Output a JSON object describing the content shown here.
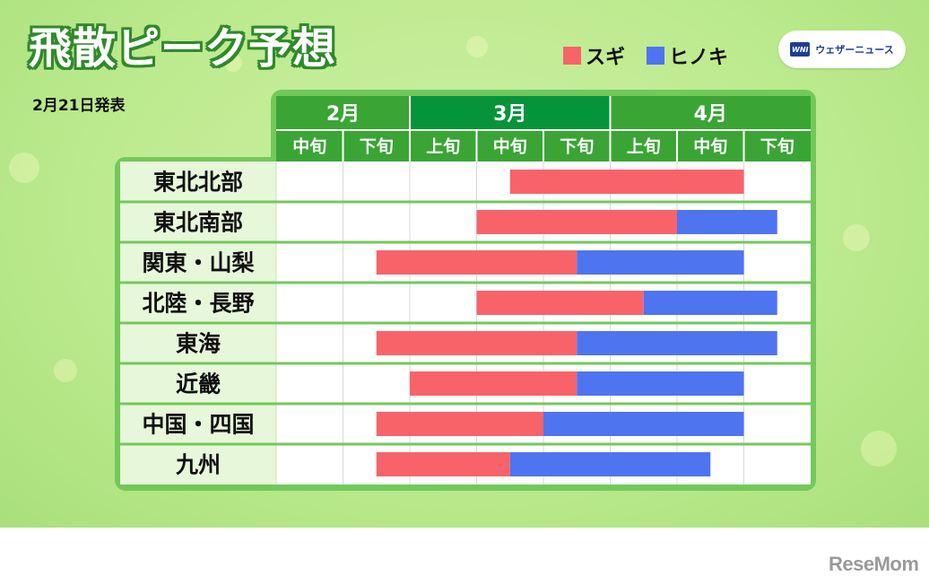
{
  "title": "飛散ピーク予想",
  "date": "2月21日発表",
  "legend": [
    {
      "label": "スギ",
      "color": "#f8636a"
    },
    {
      "label": "ヒノキ",
      "color": "#4f74ef"
    }
  ],
  "logo": {
    "mark": "WNI",
    "text": "ウェザーニュース"
  },
  "footer_brand": "ReseMom",
  "colors": {
    "header_light": "#3aa535",
    "header_dark": "#06943b",
    "frame": "#72c95a",
    "label_bg": "#e7f7da"
  },
  "chart_data": {
    "type": "gantt",
    "months": [
      {
        "label": "2月",
        "span": 2
      },
      {
        "label": "3月",
        "span": 3
      },
      {
        "label": "4月",
        "span": 3
      }
    ],
    "periods": [
      "中旬",
      "下旬",
      "上旬",
      "中旬",
      "下旬",
      "上旬",
      "中旬",
      "下旬"
    ],
    "series": [
      {
        "name": "スギ",
        "color": "#f8636a"
      },
      {
        "name": "ヒノキ",
        "color": "#4f74ef"
      }
    ],
    "rows": [
      {
        "region": "東北北部",
        "sugi": [
          3.5,
          7.0
        ],
        "hinoki": null
      },
      {
        "region": "東北南部",
        "sugi": [
          3.0,
          6.0
        ],
        "hinoki": [
          6.0,
          7.5
        ]
      },
      {
        "region": "関東・山梨",
        "sugi": [
          1.5,
          4.5
        ],
        "hinoki": [
          4.5,
          7.0
        ]
      },
      {
        "region": "北陸・長野",
        "sugi": [
          3.0,
          5.5
        ],
        "hinoki": [
          5.5,
          7.5
        ]
      },
      {
        "region": "東海",
        "sugi": [
          1.5,
          4.5
        ],
        "hinoki": [
          4.5,
          7.5
        ]
      },
      {
        "region": "近畿",
        "sugi": [
          2.0,
          4.5
        ],
        "hinoki": [
          4.5,
          7.0
        ]
      },
      {
        "region": "中国・四国",
        "sugi": [
          1.5,
          4.0
        ],
        "hinoki": [
          4.0,
          7.0
        ]
      },
      {
        "region": "九州",
        "sugi": [
          1.5,
          3.5
        ],
        "hinoki": [
          3.5,
          6.5
        ]
      }
    ]
  }
}
